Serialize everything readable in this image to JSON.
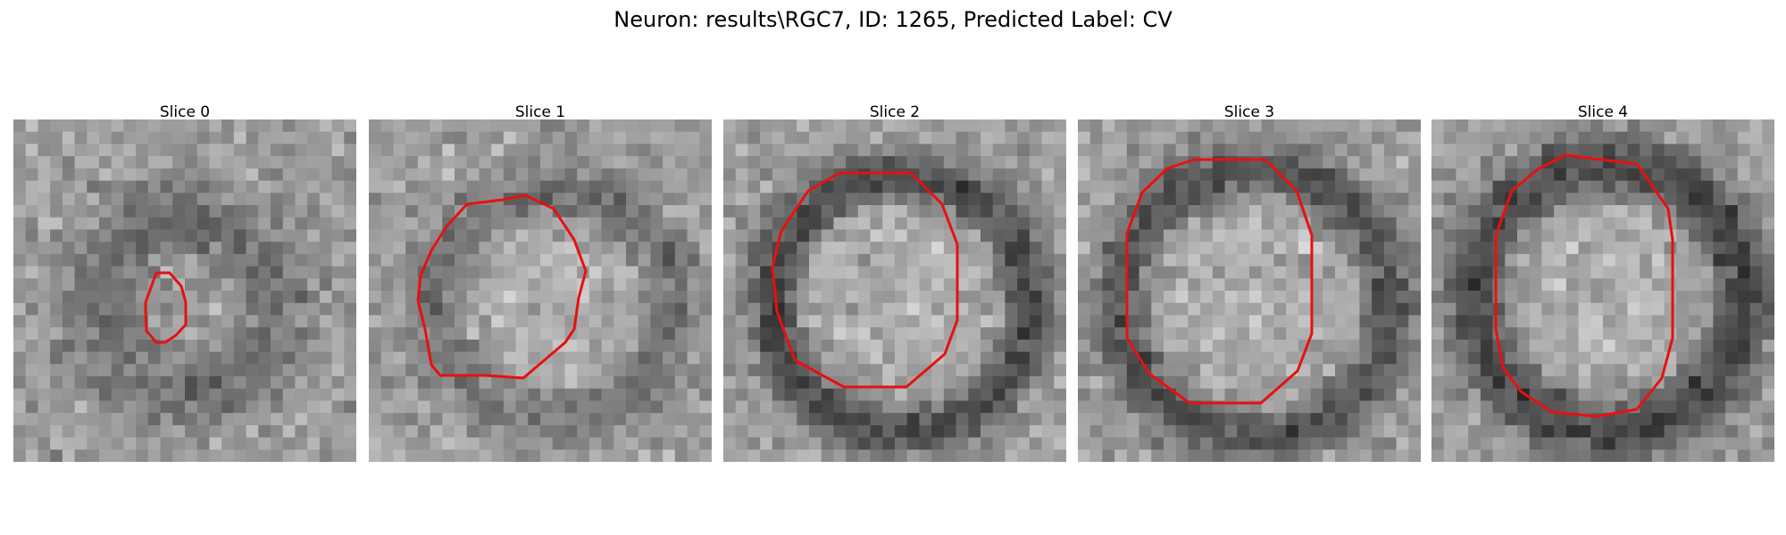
{
  "figure": {
    "title": "Neuron: results\\RGC7, ID: 1265, Predicted Label: CV"
  },
  "colors": {
    "contour": "#e81010",
    "background": "#ffffff"
  },
  "slices": [
    {
      "title": "Slice 0"
    },
    {
      "title": "Slice 1"
    },
    {
      "title": "Slice 2"
    },
    {
      "title": "Slice 3"
    },
    {
      "title": "Slice 4"
    }
  ]
}
